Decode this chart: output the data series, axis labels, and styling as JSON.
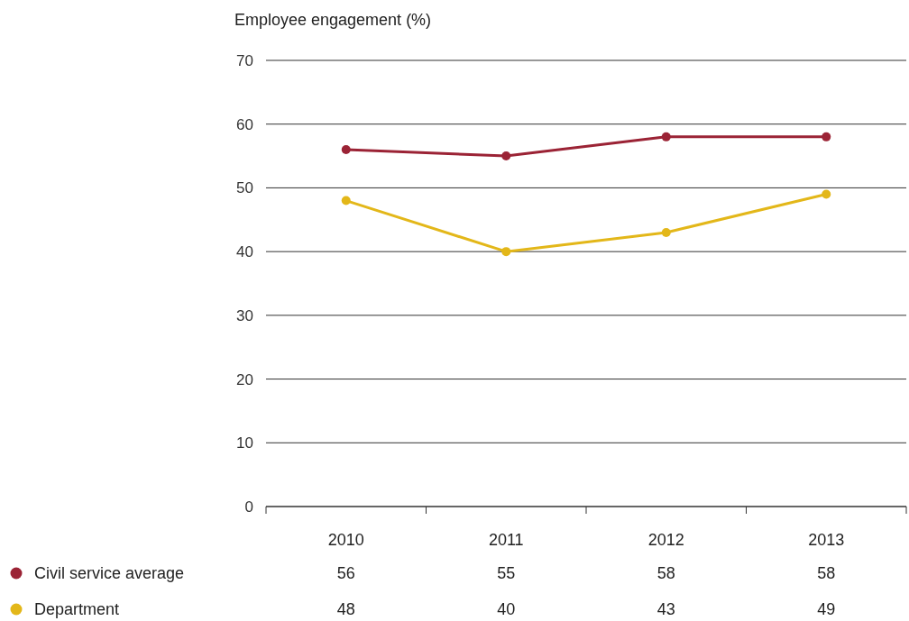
{
  "chart_data": {
    "type": "line",
    "ylabel": "Employee engagement (%)",
    "categories": [
      "2010",
      "2011",
      "2012",
      "2013"
    ],
    "series": [
      {
        "name": "Civil service average",
        "color": "#9b2335",
        "values": [
          56,
          55,
          58,
          58
        ]
      },
      {
        "name": "Department",
        "color": "#e3b719",
        "values": [
          48,
          40,
          43,
          49
        ]
      }
    ],
    "ylim": [
      0,
      70
    ],
    "yticks": [
      0,
      10,
      20,
      30,
      40,
      50,
      60,
      70
    ],
    "grid": "y",
    "marker": "circle",
    "legend": "bottom left",
    "data_labels": true
  }
}
